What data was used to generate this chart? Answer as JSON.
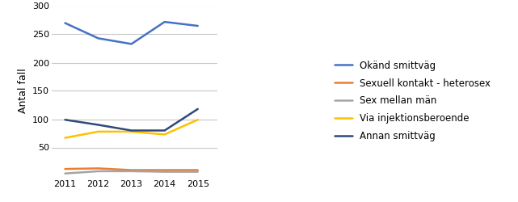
{
  "years": [
    2011,
    2012,
    2013,
    2014,
    2015
  ],
  "series": [
    {
      "label": "Okänd smittväg",
      "values": [
        270,
        243,
        233,
        272,
        265
      ],
      "color": "#4472C4",
      "linewidth": 1.8
    },
    {
      "label": "Sexuell kontakt - heterosex",
      "values": [
        12,
        13,
        10,
        10,
        10
      ],
      "color": "#ED7D31",
      "linewidth": 1.8
    },
    {
      "label": "Sex mellan män",
      "values": [
        4,
        8,
        8,
        7,
        7
      ],
      "color": "#A5A5A5",
      "linewidth": 1.8
    },
    {
      "label": "Via injektionsberoende",
      "values": [
        67,
        78,
        78,
        73,
        99
      ],
      "color": "#FFC000",
      "linewidth": 1.8
    },
    {
      "label": "Annan smittväg",
      "values": [
        99,
        90,
        80,
        80,
        118
      ],
      "color": "#2E4A7A",
      "linewidth": 1.8
    }
  ],
  "ylabel": "Antal fall",
  "ylim": [
    0,
    300
  ],
  "yticks": [
    50,
    100,
    150,
    200,
    250,
    300
  ],
  "xlim": [
    2010.6,
    2015.6
  ],
  "xticks": [
    2011,
    2012,
    2013,
    2014,
    2015
  ],
  "background_color": "#ffffff",
  "grid_color": "#C8C8C8",
  "label_fontsize": 9,
  "tick_fontsize": 8,
  "legend_fontsize": 8.5
}
